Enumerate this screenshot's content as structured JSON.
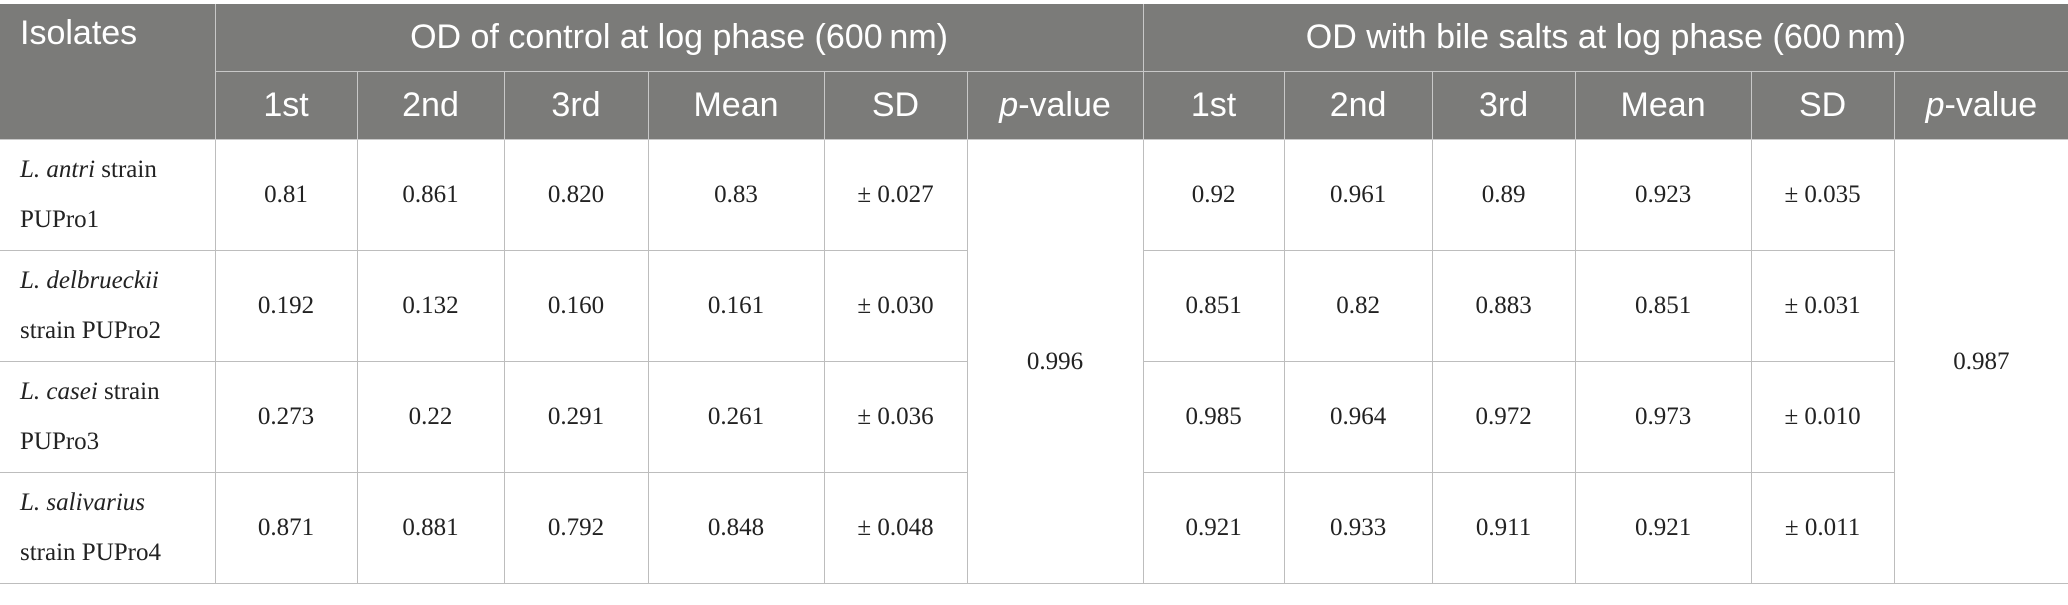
{
  "header": {
    "isolates": "Isolates",
    "group_control": "OD of control at log phase (600 nm)",
    "group_bile": "OD with bile salts at log phase (600 nm)",
    "cols": {
      "first": "1st",
      "second": "2nd",
      "third": "3rd",
      "mean": "Mean",
      "sd": "SD",
      "p_prefix": "p",
      "p_suffix": "-value"
    }
  },
  "rows": [
    {
      "species": "L. antri",
      "strain_line1": " strain",
      "strain_line2": "PUPro1",
      "control": [
        "0.81",
        "0.861",
        "0.820",
        "0.83",
        "± 0.027"
      ],
      "bile": [
        "0.92",
        "0.961",
        "0.89",
        "0.923",
        "± 0.035"
      ]
    },
    {
      "species": "L. delbrueckii",
      "strain_line1": "",
      "strain_line2": "strain PUPro2",
      "control": [
        "0.192",
        "0.132",
        "0.160",
        "0.161",
        "± 0.030"
      ],
      "bile": [
        "0.851",
        "0.82",
        "0.883",
        "0.851",
        "± 0.031"
      ]
    },
    {
      "species": "L. casei",
      "strain_line1": " strain",
      "strain_line2": "PUPro3",
      "control": [
        "0.273",
        "0.22",
        "0.291",
        "0.261",
        "± 0.036"
      ],
      "bile": [
        "0.985",
        "0.964",
        "0.972",
        "0.973",
        "± 0.010"
      ]
    },
    {
      "species": "L. salivarius",
      "strain_line1": "",
      "strain_line2": "strain PUPro4",
      "control": [
        "0.871",
        "0.881",
        "0.792",
        "0.848",
        "± 0.048"
      ],
      "bile": [
        "0.921",
        "0.933",
        "0.911",
        "0.921",
        "± 0.011"
      ]
    }
  ],
  "pvalues": {
    "control": "0.996",
    "bile": "0.987"
  }
}
